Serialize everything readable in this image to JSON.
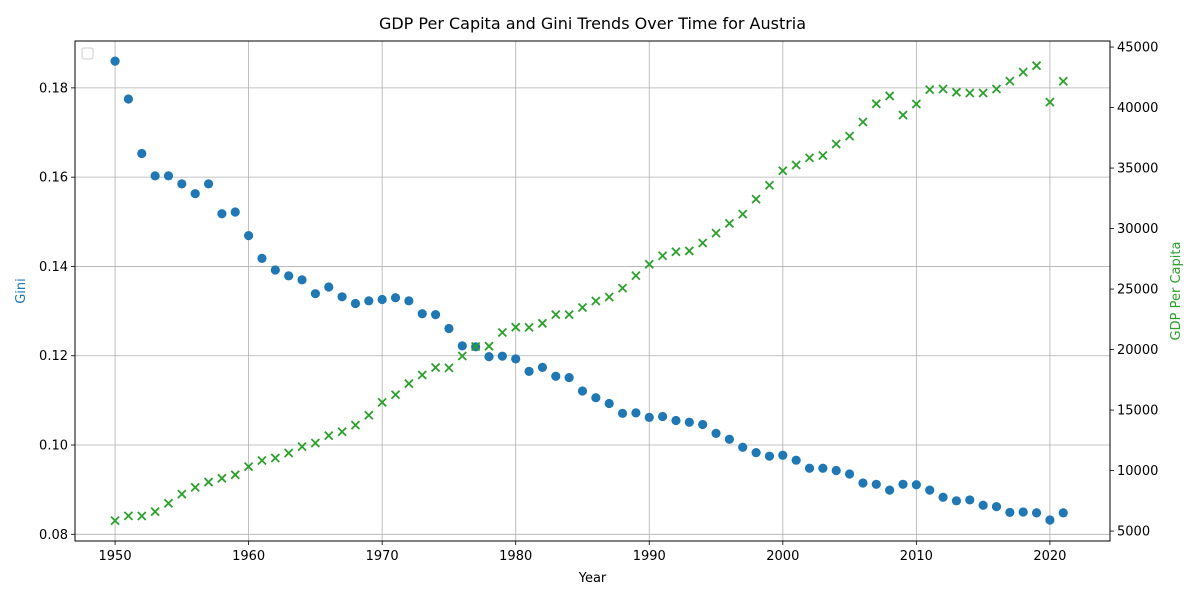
{
  "chart_data": {
    "type": "scatter",
    "title": "GDP Per Capita and Gini Trends Over Time for Austria",
    "xlabel": "Year",
    "ylabel_left": "Gini",
    "ylabel_right": "GDP Per Capita",
    "xlim": [
      1947,
      2024.5
    ],
    "ylim_left": [
      0.0785,
      0.1905
    ],
    "ylim_right": [
      4180,
      45500
    ],
    "x_ticks": [
      1950,
      1960,
      1970,
      1980,
      1990,
      2000,
      2010,
      2020
    ],
    "y_ticks_left": [
      0.08,
      0.1,
      0.12,
      0.14,
      0.16,
      0.18
    ],
    "y_ticks_right": [
      5000,
      10000,
      15000,
      20000,
      25000,
      30000,
      35000,
      40000,
      45000
    ],
    "grid": true,
    "legend_position": "upper-left",
    "colors": {
      "gini": "#1f77b4",
      "gdp": "#2ca02c"
    },
    "series": [
      {
        "key": "gini",
        "axis": "left",
        "marker": "circle",
        "x": [
          1950,
          1951,
          1952,
          1953,
          1954,
          1955,
          1956,
          1957,
          1958,
          1959,
          1960,
          1961,
          1962,
          1963,
          1964,
          1965,
          1966,
          1967,
          1968,
          1969,
          1970,
          1971,
          1972,
          1973,
          1974,
          1975,
          1976,
          1977,
          1978,
          1979,
          1980,
          1981,
          1982,
          1983,
          1984,
          1985,
          1986,
          1987,
          1988,
          1989,
          1990,
          1991,
          1992,
          1993,
          1994,
          1995,
          1996,
          1997,
          1998,
          1999,
          2000,
          2001,
          2002,
          2003,
          2004,
          2005,
          2006,
          2007,
          2008,
          2009,
          2010,
          2011,
          2012,
          2013,
          2014,
          2015,
          2016,
          2017,
          2018,
          2019,
          2020,
          2021
        ],
        "values": [
          0.186,
          0.1775,
          0.1653,
          0.1603,
          0.1603,
          0.1585,
          0.1563,
          0.1585,
          0.1518,
          0.1522,
          0.1469,
          0.1418,
          0.1392,
          0.1379,
          0.137,
          0.1339,
          0.1354,
          0.1332,
          0.1317,
          0.1323,
          0.1326,
          0.133,
          0.1323,
          0.1294,
          0.1292,
          0.1261,
          0.1222,
          0.122,
          0.1198,
          0.1199,
          0.1193,
          0.1165,
          0.1174,
          0.1154,
          0.1151,
          0.1121,
          0.1106,
          0.1093,
          0.1071,
          0.1072,
          0.1062,
          0.1064,
          0.1055,
          0.1051,
          0.1046,
          0.1026,
          0.1013,
          0.0995,
          0.0983,
          0.0975,
          0.0977,
          0.0966,
          0.0948,
          0.0948,
          0.0943,
          0.0935,
          0.0915,
          0.0912,
          0.0899,
          0.0912,
          0.0911,
          0.0899,
          0.0883,
          0.0875,
          0.0877,
          0.0865,
          0.0862,
          0.0849,
          0.085,
          0.0848,
          0.0832,
          0.0848
        ]
      },
      {
        "key": "gdp",
        "axis": "right",
        "marker": "x",
        "x": [
          1950,
          1951,
          1952,
          1953,
          1954,
          1955,
          1956,
          1957,
          1958,
          1959,
          1960,
          1961,
          1962,
          1963,
          1964,
          1965,
          1966,
          1967,
          1968,
          1969,
          1970,
          1971,
          1972,
          1973,
          1974,
          1975,
          1976,
          1977,
          1978,
          1979,
          1980,
          1981,
          1982,
          1983,
          1984,
          1985,
          1986,
          1987,
          1988,
          1989,
          1990,
          1991,
          1992,
          1993,
          1994,
          1995,
          1996,
          1997,
          1998,
          1999,
          2000,
          2001,
          2002,
          2003,
          2004,
          2005,
          2006,
          2007,
          2008,
          2009,
          2010,
          2011,
          2012,
          2013,
          2014,
          2015,
          2016,
          2017,
          2018,
          2019,
          2020,
          2021
        ],
        "values": [
          5860,
          6260,
          6250,
          6610,
          7300,
          8050,
          8610,
          9050,
          9360,
          9650,
          10330,
          10830,
          11040,
          11450,
          11980,
          12280,
          12890,
          13210,
          13760,
          14570,
          15640,
          16270,
          17190,
          17900,
          18520,
          18490,
          19470,
          20250,
          20280,
          21410,
          21850,
          21830,
          22170,
          22890,
          22890,
          23480,
          24010,
          24340,
          25080,
          26110,
          27050,
          27750,
          28080,
          28150,
          28810,
          29620,
          30430,
          31190,
          32430,
          33580,
          34780,
          35250,
          35840,
          36040,
          36990,
          37640,
          38810,
          40310,
          40960,
          39380,
          40290,
          41480,
          41530,
          41270,
          41200,
          41200,
          41530,
          42180,
          42930,
          43460,
          40450,
          42170
        ]
      }
    ]
  }
}
